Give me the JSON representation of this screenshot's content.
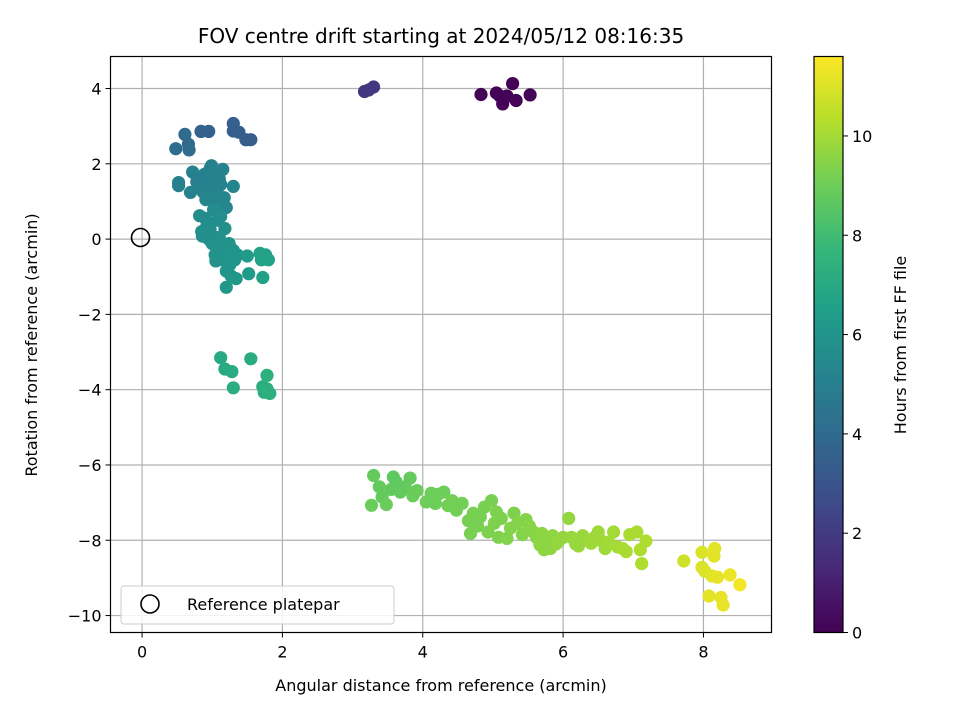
{
  "chart_data": {
    "type": "scatter",
    "title": "FOV centre drift starting at 2024/05/12 08:16:35",
    "xlabel": "Angular distance from reference (arcmin)",
    "ylabel": "Rotation from reference (arcmin)",
    "xlim": [
      -0.45,
      8.97
    ],
    "ylim": [
      -10.45,
      4.85
    ],
    "xticks": [
      0,
      2,
      4,
      6,
      8
    ],
    "yticks": [
      4,
      2,
      0,
      -2,
      -4,
      -6,
      -8,
      -10
    ],
    "grid": true,
    "legend": {
      "location": "lower-left",
      "entries": [
        "Reference platepar"
      ]
    },
    "colorbar": {
      "label": "Hours from first FF file",
      "colormap": "viridis",
      "range": [
        0,
        11.6
      ],
      "ticks": [
        0,
        2,
        4,
        6,
        8,
        10
      ]
    },
    "reference_point": {
      "x": 0,
      "y": 0
    },
    "series": [
      {
        "points": [
          [
            4.83,
            3.84,
            0.05
          ],
          [
            5.05,
            3.88,
            0.05
          ],
          [
            5.1,
            3.8,
            0.06
          ],
          [
            5.14,
            3.59,
            0.08
          ],
          [
            5.2,
            3.8,
            0.08
          ],
          [
            5.28,
            4.13,
            0.09
          ],
          [
            5.33,
            3.68,
            0.1
          ],
          [
            5.53,
            3.83,
            0.12
          ],
          [
            3.17,
            3.92,
            1.8
          ],
          [
            3.23,
            3.96,
            1.85
          ],
          [
            3.3,
            4.04,
            1.9
          ],
          [
            0.48,
            2.4,
            4.1
          ],
          [
            0.61,
            2.78,
            4.0
          ],
          [
            0.66,
            2.52,
            4.0
          ],
          [
            0.67,
            2.37,
            4.05
          ],
          [
            0.84,
            2.86,
            3.6
          ],
          [
            0.95,
            2.86,
            3.6
          ],
          [
            1.3,
            3.07,
            3.5
          ],
          [
            1.3,
            2.87,
            3.5
          ],
          [
            1.38,
            2.84,
            3.5
          ],
          [
            1.48,
            2.64,
            3.4
          ],
          [
            1.55,
            2.64,
            3.4
          ],
          [
            0.52,
            1.42,
            5.0
          ],
          [
            0.52,
            1.5,
            5.0
          ],
          [
            0.69,
            1.24,
            5.2
          ],
          [
            0.72,
            1.78,
            5.1
          ],
          [
            0.78,
            1.52,
            5.0
          ],
          [
            0.84,
            1.42,
            5.1
          ],
          [
            0.85,
            1.62,
            5.0
          ],
          [
            0.87,
            1.25,
            5.2
          ],
          [
            0.89,
            1.72,
            5.1
          ],
          [
            0.91,
            1.05,
            5.3
          ],
          [
            0.93,
            1.55,
            5.1
          ],
          [
            0.95,
            1.36,
            5.2
          ],
          [
            0.97,
            1.87,
            5.1
          ],
          [
            0.99,
            1.95,
            5.1
          ],
          [
            1.0,
            1.15,
            5.3
          ],
          [
            1.02,
            1.68,
            5.2
          ],
          [
            1.03,
            1.42,
            5.2
          ],
          [
            1.05,
            1.78,
            5.2
          ],
          [
            1.07,
            1.25,
            5.3
          ],
          [
            1.1,
            1.6,
            5.2
          ],
          [
            1.12,
            1.45,
            5.2
          ],
          [
            1.15,
            1.85,
            5.2
          ],
          [
            1.17,
            1.1,
            5.3
          ],
          [
            1.3,
            1.4,
            5.3
          ],
          [
            1.2,
            0.84,
            5.4
          ],
          [
            1.05,
            1.0,
            5.3
          ],
          [
            0.82,
            0.62,
            5.6
          ],
          [
            0.85,
            0.2,
            5.7
          ],
          [
            0.86,
            0.08,
            5.8
          ],
          [
            0.9,
            0.55,
            5.6
          ],
          [
            0.92,
            0.32,
            5.7
          ],
          [
            0.95,
            0.0,
            5.8
          ],
          [
            0.97,
            0.25,
            5.7
          ],
          [
            1.0,
            -0.12,
            5.8
          ],
          [
            1.02,
            0.78,
            5.6
          ],
          [
            1.04,
            -0.42,
            5.9
          ],
          [
            1.05,
            -0.58,
            5.9
          ],
          [
            1.07,
            0.5,
            5.7
          ],
          [
            1.08,
            -0.28,
            5.9
          ],
          [
            1.1,
            0.05,
            5.8
          ],
          [
            1.12,
            0.6,
            5.7
          ],
          [
            1.14,
            -0.55,
            5.9
          ],
          [
            1.16,
            -0.18,
            5.9
          ],
          [
            1.18,
            0.28,
            5.8
          ],
          [
            1.2,
            -0.85,
            6.0
          ],
          [
            1.2,
            -1.28,
            6.1
          ],
          [
            1.22,
            -0.42,
            6.0
          ],
          [
            1.24,
            -0.12,
            5.9
          ],
          [
            1.25,
            -0.68,
            6.0
          ],
          [
            1.27,
            -0.98,
            6.1
          ],
          [
            1.3,
            -0.3,
            6.0
          ],
          [
            1.32,
            -0.55,
            6.0
          ],
          [
            1.34,
            -1.05,
            6.1
          ],
          [
            1.36,
            -0.42,
            6.0
          ],
          [
            1.5,
            -0.45,
            6.3
          ],
          [
            1.52,
            -0.92,
            6.3
          ],
          [
            1.68,
            -0.38,
            6.6
          ],
          [
            1.7,
            -0.55,
            6.6
          ],
          [
            1.72,
            -1.02,
            6.6
          ],
          [
            1.76,
            -0.42,
            6.6
          ],
          [
            1.8,
            -0.55,
            6.6
          ],
          [
            1.12,
            -3.15,
            7.0
          ],
          [
            1.18,
            -3.45,
            7.0
          ],
          [
            1.28,
            -3.52,
            7.1
          ],
          [
            1.3,
            -3.95,
            7.2
          ],
          [
            1.55,
            -3.18,
            7.1
          ],
          [
            1.72,
            -3.92,
            7.2
          ],
          [
            1.74,
            -4.07,
            7.2
          ],
          [
            1.78,
            -3.98,
            7.3
          ],
          [
            1.78,
            -3.62,
            7.3
          ],
          [
            1.82,
            -4.1,
            7.3
          ],
          [
            3.3,
            -6.28,
            8.8
          ],
          [
            3.27,
            -7.07,
            8.9
          ],
          [
            3.38,
            -6.58,
            8.8
          ],
          [
            3.42,
            -6.85,
            8.8
          ],
          [
            3.48,
            -7.05,
            8.9
          ],
          [
            3.55,
            -6.65,
            8.8
          ],
          [
            3.58,
            -6.32,
            8.7
          ],
          [
            3.62,
            -6.45,
            8.7
          ],
          [
            3.68,
            -6.72,
            8.8
          ],
          [
            3.75,
            -6.58,
            8.8
          ],
          [
            3.82,
            -6.35,
            8.8
          ],
          [
            3.86,
            -6.82,
            8.9
          ],
          [
            3.92,
            -6.68,
            8.9
          ],
          [
            4.05,
            -6.98,
            9.0
          ],
          [
            4.12,
            -6.75,
            9.0
          ],
          [
            4.18,
            -7.02,
            9.0
          ],
          [
            4.22,
            -6.78,
            9.0
          ],
          [
            4.3,
            -6.72,
            9.0
          ],
          [
            4.36,
            -7.08,
            9.1
          ],
          [
            4.42,
            -6.95,
            9.1
          ],
          [
            4.48,
            -7.2,
            9.1
          ],
          [
            4.56,
            -7.02,
            9.1
          ],
          [
            4.65,
            -7.48,
            9.2
          ],
          [
            4.68,
            -7.82,
            9.2
          ],
          [
            4.72,
            -7.28,
            9.2
          ],
          [
            4.78,
            -7.62,
            9.2
          ],
          [
            4.82,
            -7.38,
            9.2
          ],
          [
            4.88,
            -7.12,
            9.2
          ],
          [
            4.93,
            -7.78,
            9.3
          ],
          [
            4.98,
            -6.95,
            9.2
          ],
          [
            5.02,
            -7.55,
            9.3
          ],
          [
            5.05,
            -7.25,
            9.3
          ],
          [
            5.08,
            -7.92,
            9.3
          ],
          [
            5.12,
            -7.42,
            9.3
          ],
          [
            5.2,
            -7.95,
            9.4
          ],
          [
            5.25,
            -7.68,
            9.4
          ],
          [
            5.3,
            -7.28,
            9.3
          ],
          [
            5.35,
            -7.55,
            9.4
          ],
          [
            5.42,
            -7.85,
            9.4
          ],
          [
            5.47,
            -7.45,
            9.4
          ],
          [
            5.52,
            -7.62,
            9.5
          ],
          [
            5.58,
            -7.78,
            9.5
          ],
          [
            5.62,
            -7.92,
            9.5
          ],
          [
            5.67,
            -8.12,
            9.6
          ],
          [
            5.7,
            -7.82,
            9.6
          ],
          [
            5.73,
            -8.25,
            9.6
          ],
          [
            5.77,
            -8.0,
            9.6
          ],
          [
            5.82,
            -8.22,
            9.6
          ],
          [
            5.85,
            -7.88,
            9.6
          ],
          [
            5.9,
            -8.1,
            9.7
          ],
          [
            5.94,
            -8.02,
            9.7
          ],
          [
            6.0,
            -7.92,
            9.7
          ],
          [
            6.08,
            -7.42,
            9.7
          ],
          [
            6.12,
            -7.92,
            9.8
          ],
          [
            6.18,
            -8.1,
            9.8
          ],
          [
            6.22,
            -8.15,
            9.8
          ],
          [
            6.28,
            -7.88,
            9.8
          ],
          [
            6.34,
            -8.0,
            9.8
          ],
          [
            6.4,
            -8.08,
            9.9
          ],
          [
            6.45,
            -7.92,
            9.9
          ],
          [
            6.5,
            -7.78,
            9.9
          ],
          [
            6.55,
            -8.02,
            9.9
          ],
          [
            6.6,
            -8.22,
            9.9
          ],
          [
            6.65,
            -8.05,
            10.0
          ],
          [
            6.72,
            -7.78,
            10.0
          ],
          [
            6.78,
            -8.18,
            10.0
          ],
          [
            6.85,
            -8.22,
            10.1
          ],
          [
            6.9,
            -8.3,
            10.1
          ],
          [
            6.95,
            -7.85,
            10.1
          ],
          [
            7.05,
            -7.78,
            10.1
          ],
          [
            7.1,
            -8.25,
            10.2
          ],
          [
            7.12,
            -8.62,
            10.2
          ],
          [
            7.18,
            -8.02,
            10.2
          ],
          [
            7.72,
            -8.55,
            10.8
          ],
          [
            7.98,
            -8.32,
            11.0
          ],
          [
            7.98,
            -8.72,
            11.0
          ],
          [
            8.02,
            -8.82,
            11.0
          ],
          [
            8.08,
            -9.48,
            11.1
          ],
          [
            8.12,
            -8.95,
            11.1
          ],
          [
            8.15,
            -8.42,
            11.1
          ],
          [
            8.16,
            -8.22,
            11.1
          ],
          [
            8.2,
            -8.98,
            11.2
          ],
          [
            8.25,
            -9.52,
            11.2
          ],
          [
            8.28,
            -9.72,
            11.2
          ],
          [
            8.38,
            -8.92,
            11.3
          ],
          [
            8.52,
            -9.18,
            11.4
          ]
        ]
      }
    ]
  }
}
